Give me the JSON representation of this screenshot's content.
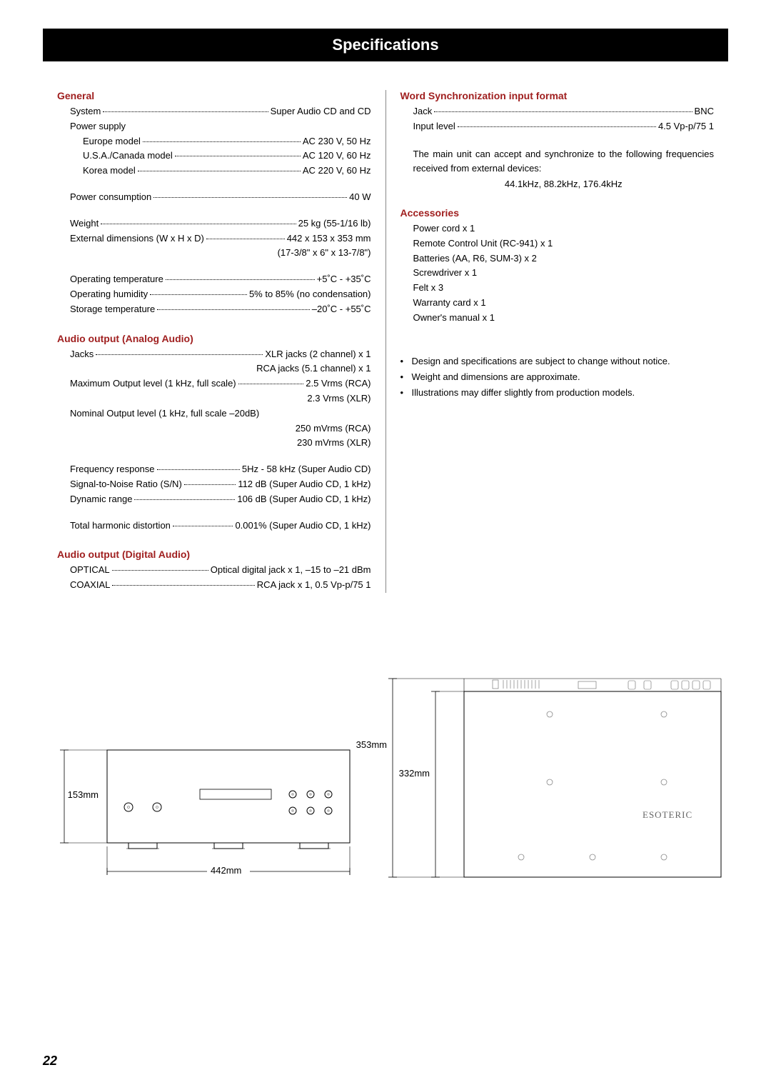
{
  "page_title": "Specifications",
  "page_number": "22",
  "colors": {
    "heading": "#a02020",
    "bar_bg": "#000000",
    "bar_fg": "#ffffff",
    "divider": "#888888"
  },
  "fonts": {
    "body_size_pt": 10,
    "title_size_pt": 17,
    "heading_size_pt": 11
  },
  "left": {
    "general": {
      "title": "General",
      "rows": [
        {
          "label": "System",
          "value": "Super Audio CD and CD"
        }
      ],
      "power_supply_label": "Power supply",
      "power_supply_rows": [
        {
          "label": "Europe model",
          "value": "AC 230 V, 50 Hz"
        },
        {
          "label": "U.S.A./Canada model",
          "value": "AC 120 V, 60 Hz"
        },
        {
          "label": "Korea model",
          "value": "AC 220 V, 60 Hz"
        }
      ],
      "rows2": [
        {
          "label": "Power consumption",
          "value": "40 W"
        }
      ],
      "rows3": [
        {
          "label": "Weight",
          "value": "25 kg (55-1/16 lb)"
        },
        {
          "label": "External dimensions (W x H x D)",
          "value": "442 x 153 x 353 mm"
        }
      ],
      "rows3_cont": "(17-3/8\" x 6\" x 13-7/8\")",
      "rows4": [
        {
          "label": "Operating temperature",
          "value": "+5˚C - +35˚C"
        },
        {
          "label": "Operating humidity",
          "value": "5% to 85% (no condensation)"
        },
        {
          "label": "Storage temperature",
          "value": "–20˚C - +55˚C"
        }
      ]
    },
    "analog": {
      "title": "Audio output (Analog Audio)",
      "rows": [
        {
          "label": "Jacks",
          "value": "XLR jacks (2 channel) x 1"
        }
      ],
      "row1_cont": "RCA jacks (5.1 channel) x 1",
      "max_out": {
        "label": "Maximum Output level (1 kHz, full scale)",
        "value": "2.5 Vrms (RCA)"
      },
      "max_out_cont": "2.3 Vrms (XLR)",
      "nom_out_label": "Nominal Output level (1 kHz, full scale –20dB)",
      "nom_out_cont1": "250 mVrms (RCA)",
      "nom_out_cont2": "230 mVrms (XLR)",
      "rows2": [
        {
          "label": "Frequency response",
          "value": "5Hz - 58 kHz (Super Audio CD)"
        },
        {
          "label": "Signal-to-Noise Ratio (S/N)",
          "value": "112 dB (Super Audio CD, 1 kHz)"
        },
        {
          "label": "Dynamic range",
          "value": "106 dB (Super Audio CD, 1 kHz)"
        }
      ],
      "rows3": [
        {
          "label": "Total harmonic distortion",
          "value": "0.001% (Super Audio CD, 1 kHz)"
        }
      ]
    },
    "digital": {
      "title": "Audio output (Digital Audio)",
      "rows": [
        {
          "label": "OPTICAL",
          "value": "Optical digital jack x 1, –15 to –21 dBm"
        },
        {
          "label": "COAXIAL",
          "value": "RCA jack x 1,  0.5 Vp-p/75  1"
        }
      ]
    }
  },
  "right": {
    "word_sync": {
      "title": "Word Synchronization input format",
      "rows": [
        {
          "label": "Jack",
          "value": "BNC"
        },
        {
          "label": "Input level",
          "value": "4.5 Vp-p/75 1"
        }
      ],
      "para": "The main unit can accept and synchronize to the following frequencies received from external devices:",
      "freqs": "44.1kHz, 88.2kHz, 176.4kHz"
    },
    "accessories": {
      "title": "Accessories",
      "items": [
        "Power cord x 1",
        "Remote Control Unit (RC-941) x 1",
        "Batteries (AA, R6, SUM-3) x 2",
        "Screwdriver x 1",
        "Felt x 3",
        "Warranty card x 1",
        "Owner's manual x 1"
      ]
    },
    "notes": [
      "Design and specifications are subject to change without notice.",
      "Weight and dimensions are approximate.",
      "Illustrations may differ slightly from production models."
    ]
  },
  "diagrams": {
    "front": {
      "width_mm": "442mm",
      "height_mm": "153mm"
    },
    "top": {
      "depth_mm": "353mm",
      "inner_depth_mm": "332mm",
      "brand": "ESOTERIC"
    }
  }
}
